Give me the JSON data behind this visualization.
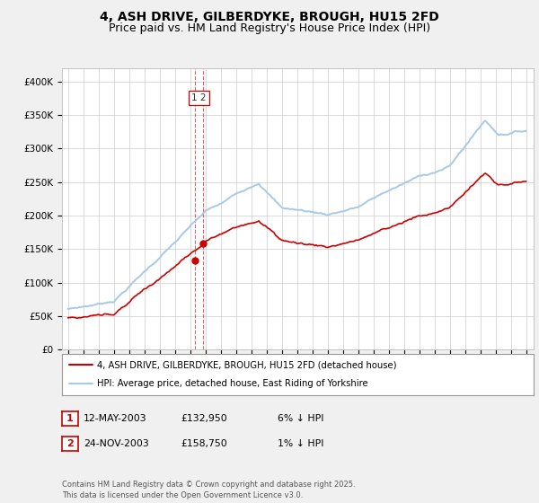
{
  "title": "4, ASH DRIVE, GILBERDYKE, BROUGH, HU15 2FD",
  "subtitle": "Price paid vs. HM Land Registry's House Price Index (HPI)",
  "ylim": [
    0,
    420000
  ],
  "yticks": [
    0,
    50000,
    100000,
    150000,
    200000,
    250000,
    300000,
    350000,
    400000
  ],
  "ytick_labels": [
    "£0",
    "£50K",
    "£100K",
    "£150K",
    "£200K",
    "£250K",
    "£300K",
    "£350K",
    "£400K"
  ],
  "hpi_color": "#a8c8e8",
  "price_color": "#cc0000",
  "dashed_color": "#cc0000",
  "background_color": "#f0f0f0",
  "plot_bg_color": "#ffffff",
  "legend_label_red": "4, ASH DRIVE, GILBERDYKE, BROUGH, HU15 2FD (detached house)",
  "legend_label_blue": "HPI: Average price, detached house, East Riding of Yorkshire",
  "transaction1_date": "12-MAY-2003",
  "transaction1_price": "£132,950",
  "transaction1_hpi": "6% ↓ HPI",
  "transaction2_date": "24-NOV-2003",
  "transaction2_price": "£158,750",
  "transaction2_hpi": "1% ↓ HPI",
  "footer": "Contains HM Land Registry data © Crown copyright and database right 2025.\nThis data is licensed under the Open Government Licence v3.0.",
  "title_fontsize": 10,
  "subtitle_fontsize": 9
}
